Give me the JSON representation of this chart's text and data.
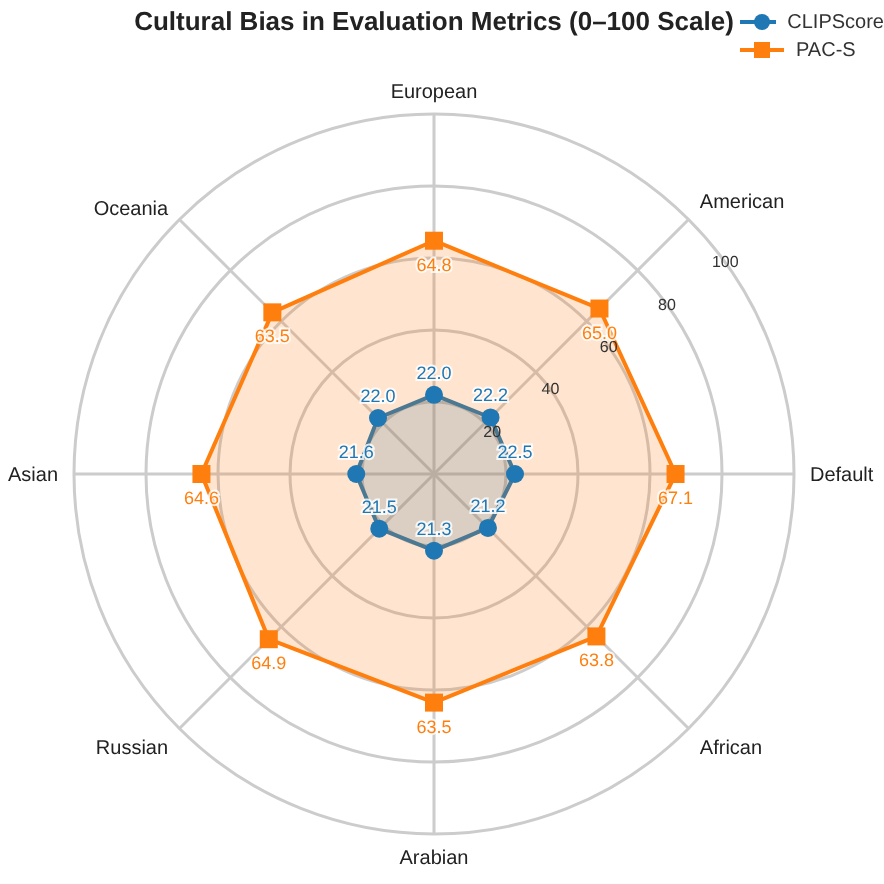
{
  "chart_data": {
    "type": "radar",
    "title": "Cultural Bias in Evaluation Metrics (0–100 Scale)",
    "categories": [
      "European",
      "American",
      "Default",
      "African",
      "Arabian",
      "Russian",
      "Asian",
      "Oceania"
    ],
    "series": [
      {
        "name": "CLIPScore",
        "color": "#1f77b4",
        "marker": "circle",
        "values": [
          22.0,
          22.2,
          22.5,
          21.2,
          21.3,
          21.5,
          21.6,
          22.0
        ],
        "value_labels": [
          "22.0",
          "22.2",
          "22.5",
          "21.2",
          "21.3",
          "21.5",
          "21.6",
          "22.0"
        ]
      },
      {
        "name": "PAC-S",
        "color": "#ff7f0e",
        "marker": "square",
        "values": [
          64.8,
          65.0,
          67.1,
          63.8,
          63.5,
          64.9,
          64.6,
          63.5
        ],
        "value_labels": [
          "64.8",
          "65.0",
          "67.1",
          "63.8",
          "63.5",
          "64.9",
          "64.6",
          "63.5"
        ]
      }
    ],
    "ylim": [
      0,
      100
    ],
    "yticks": [
      20,
      40,
      60,
      80,
      100
    ],
    "grid": true,
    "legend": "top right"
  }
}
